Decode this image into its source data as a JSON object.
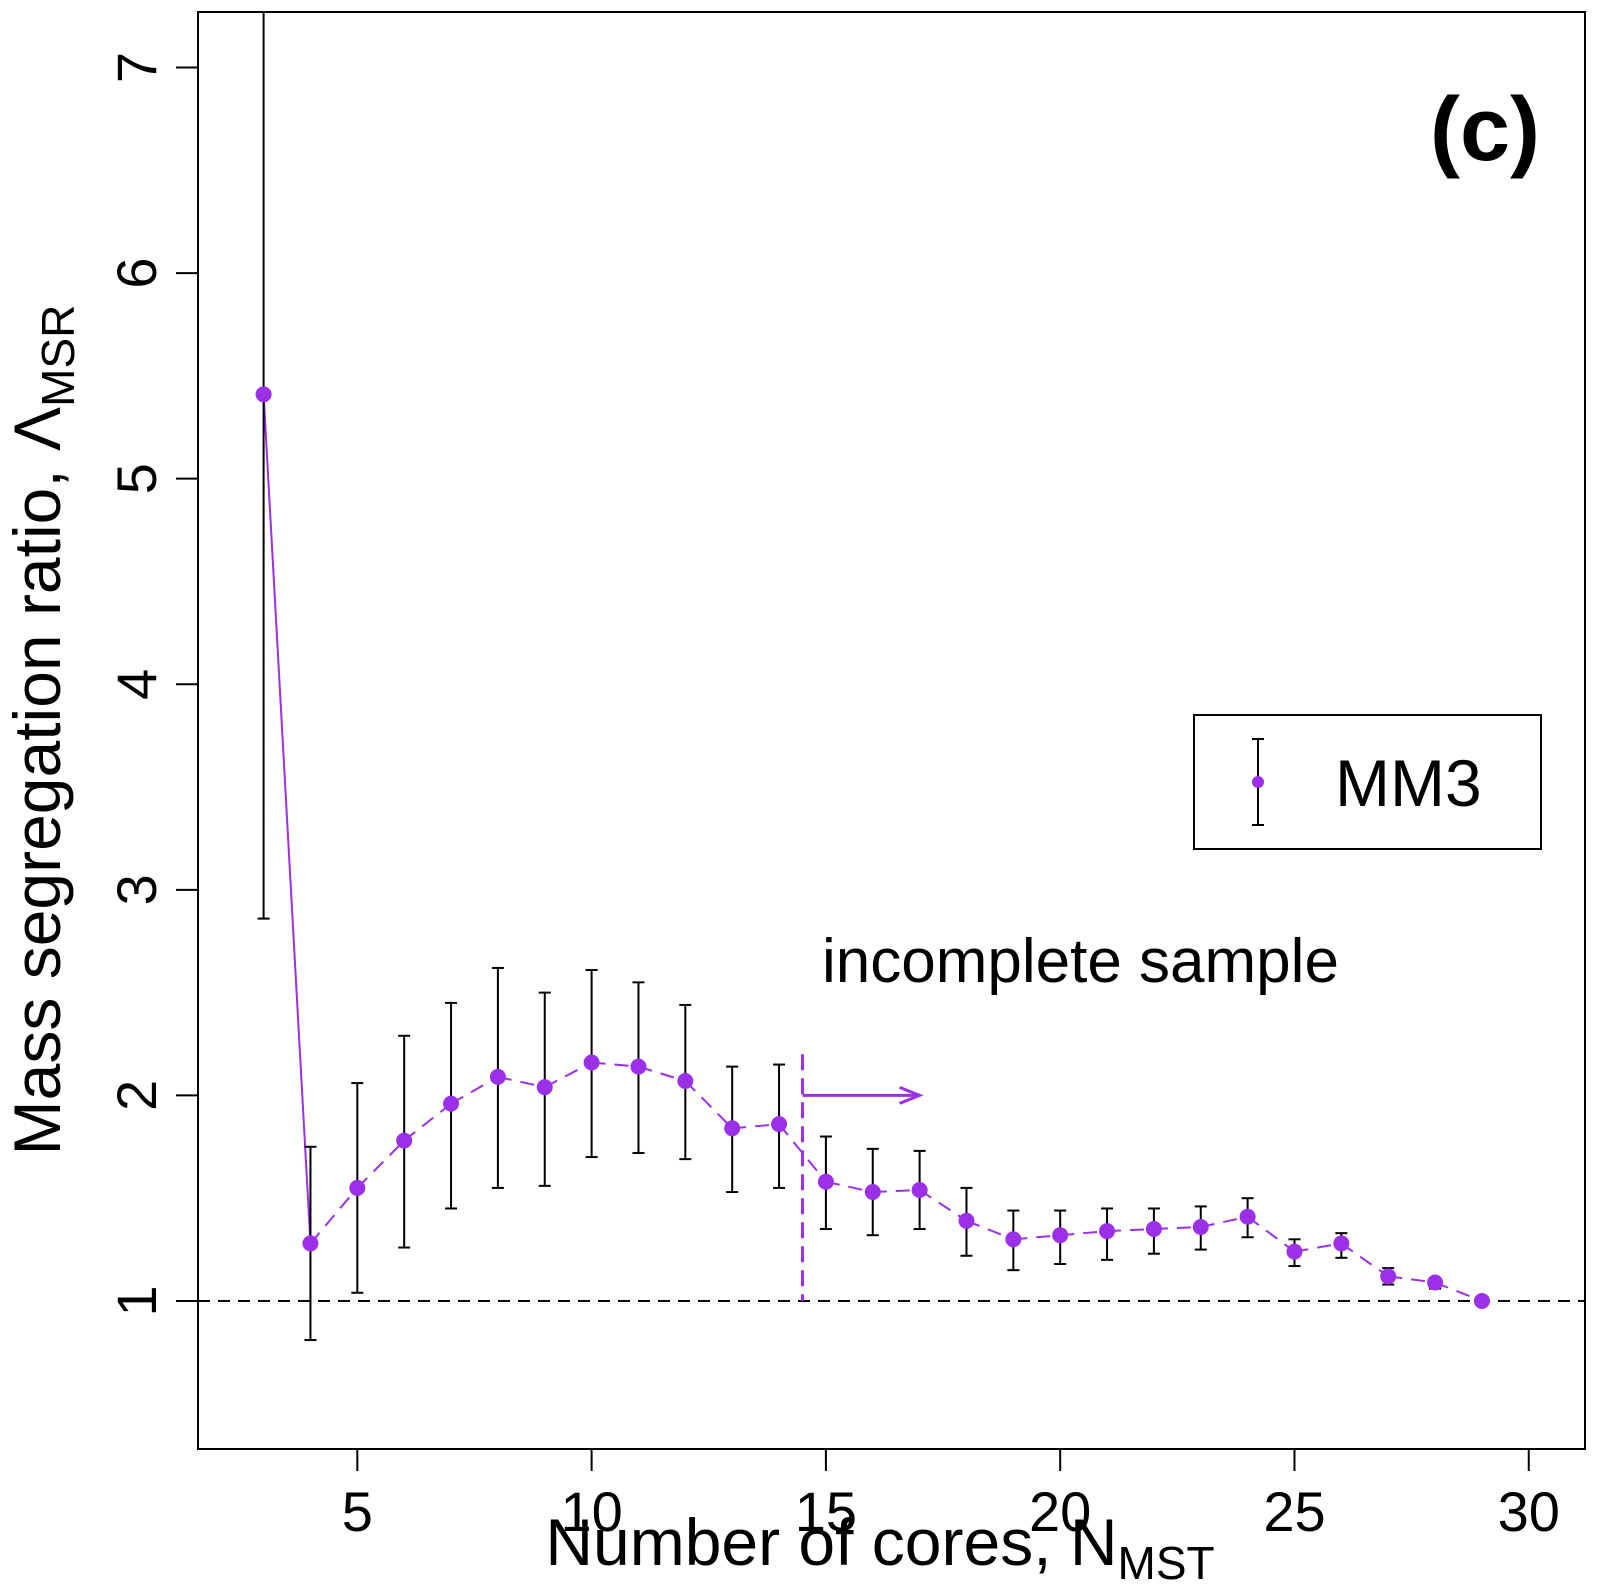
{
  "chart_data": {
    "type": "scatter",
    "title": "",
    "panel_label": "(c)",
    "xlabel_main": "Number of cores, N",
    "xlabel_sub": "MST",
    "ylabel_main": "Mass segregation ratio, Λ",
    "ylabel_sub": "MSR",
    "xlim": [
      1.6,
      31.2
    ],
    "ylim": [
      0.28,
      7.27
    ],
    "xticks": [
      5,
      10,
      15,
      20,
      25,
      30
    ],
    "yticks": [
      1,
      2,
      3,
      4,
      5,
      6,
      7
    ],
    "grid": false,
    "legend": {
      "placement": "right",
      "label": "MM3"
    },
    "annotation": "incomplete sample",
    "cutoff_x": 14.5,
    "arrow_to_x": 17,
    "arrow_y": 2.0,
    "reference_y": 1,
    "series": [
      {
        "name": "MM3",
        "color": "#9b30e8",
        "x": [
          3,
          4,
          5,
          6,
          7,
          8,
          9,
          10,
          11,
          12,
          13,
          14,
          15,
          16,
          17,
          18,
          19,
          20,
          21,
          22,
          23,
          24,
          25,
          26,
          27,
          28,
          29
        ],
        "y": [
          5.41,
          1.28,
          1.55,
          1.78,
          1.96,
          2.09,
          2.04,
          2.16,
          2.14,
          2.07,
          1.84,
          1.86,
          1.58,
          1.53,
          1.54,
          1.39,
          1.3,
          1.32,
          1.34,
          1.35,
          1.36,
          1.41,
          1.24,
          1.28,
          1.12,
          1.09,
          1.0
        ],
        "y_low": [
          2.86,
          0.81,
          1.04,
          1.26,
          1.45,
          1.55,
          1.56,
          1.7,
          1.72,
          1.69,
          1.53,
          1.55,
          1.35,
          1.32,
          1.35,
          1.22,
          1.15,
          1.18,
          1.2,
          1.23,
          1.25,
          1.31,
          1.17,
          1.21,
          1.08,
          1.06,
          1.0
        ],
        "y_high": [
          7.27,
          1.75,
          2.06,
          2.29,
          2.45,
          2.62,
          2.5,
          2.61,
          2.55,
          2.44,
          2.14,
          2.15,
          1.8,
          1.74,
          1.73,
          1.55,
          1.44,
          1.44,
          1.45,
          1.45,
          1.46,
          1.5,
          1.3,
          1.33,
          1.16,
          1.11,
          1.0
        ]
      }
    ]
  }
}
